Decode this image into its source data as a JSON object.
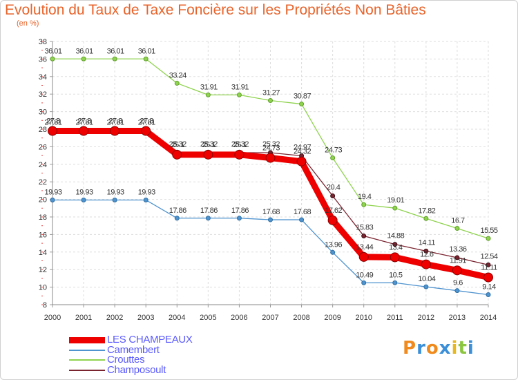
{
  "title": "Evolution du Taux de Taxe Foncière sur les Propriétés Non Bâties",
  "subtitle": "(en %)",
  "logo": {
    "letters": [
      "P",
      "r",
      "o",
      "x",
      "i",
      "t",
      "i"
    ],
    "colors": [
      "#f08a1c",
      "#3a8fd8",
      "#f08a1c",
      "#3a8fd8",
      "#e8b81c",
      "#8cc63f",
      "#3a8fd8"
    ]
  },
  "chart_data": {
    "type": "line",
    "title": "Evolution du Taux de Taxe Foncière sur les Propriétés Non Bâties",
    "subtitle": "(en %)",
    "x": [
      "2000",
      "2001",
      "2002",
      "2003",
      "2004",
      "2005",
      "2006",
      "2007",
      "2008",
      "2009",
      "2010",
      "2011",
      "2012",
      "2013",
      "2014"
    ],
    "ylim": [
      8,
      38
    ],
    "yticks": [
      8,
      10,
      12,
      14,
      16,
      18,
      20,
      22,
      24,
      26,
      28,
      30,
      32,
      34,
      36,
      38
    ],
    "grid": true,
    "legend_position": "bottom-left",
    "series": [
      {
        "name": "LES CHAMPEAUX",
        "color": "#ee0000",
        "values": [
          27.8,
          27.8,
          27.8,
          27.8,
          25.1,
          25.1,
          25.1,
          24.73,
          24.32,
          17.62,
          13.44,
          13.4,
          12.6,
          11.91,
          11.11
        ],
        "labels": [
          "27.8",
          "27.8",
          "27.8",
          "27.8",
          "25.1",
          "25.1",
          "25.1",
          "24.73",
          "24.32",
          "17.62",
          "13.44",
          "13.4",
          "12.6",
          "11.91",
          "11.11"
        ]
      },
      {
        "name": "Camembert",
        "color": "#4f93cf",
        "values": [
          19.93,
          19.93,
          19.93,
          19.93,
          17.86,
          17.86,
          17.86,
          17.68,
          17.68,
          13.96,
          10.49,
          10.5,
          10.04,
          9.6,
          9.14
        ],
        "labels": [
          "19.93",
          "19.93",
          "19.93",
          "19.93",
          "17.86",
          "17.86",
          "17.86",
          "17.68",
          "17.68",
          "13.96",
          "10.49",
          "10.5",
          "10.04",
          "9.6",
          "9.14"
        ]
      },
      {
        "name": "Crouttes",
        "color": "#8fd34e",
        "values": [
          36.01,
          36.01,
          36.01,
          36.01,
          33.24,
          31.91,
          31.91,
          31.27,
          30.87,
          24.73,
          19.4,
          19.01,
          17.82,
          16.7,
          15.55
        ],
        "labels": [
          "36.01",
          "36.01",
          "36.01",
          "36.01",
          "33.24",
          "31.91",
          "31.91",
          "31.27",
          "30.87",
          "24.73",
          "19.4",
          "19.01",
          "17.82",
          "16.7",
          "15.55"
        ]
      },
      {
        "name": "Champosoult",
        "color": "#7a2430",
        "values": [
          27.81,
          27.81,
          27.81,
          27.81,
          25.32,
          25.32,
          25.32,
          25.32,
          24.97,
          20.4,
          15.83,
          14.88,
          14.11,
          13.36,
          12.54
        ],
        "labels": [
          "27.81",
          "27.81",
          "27.81",
          "27.81",
          "25.32",
          "25.32",
          "25.32",
          "25.32",
          "24.97",
          "20.4",
          "15.83",
          "14.88",
          "14.11",
          "13.36",
          "12.54"
        ]
      }
    ]
  }
}
